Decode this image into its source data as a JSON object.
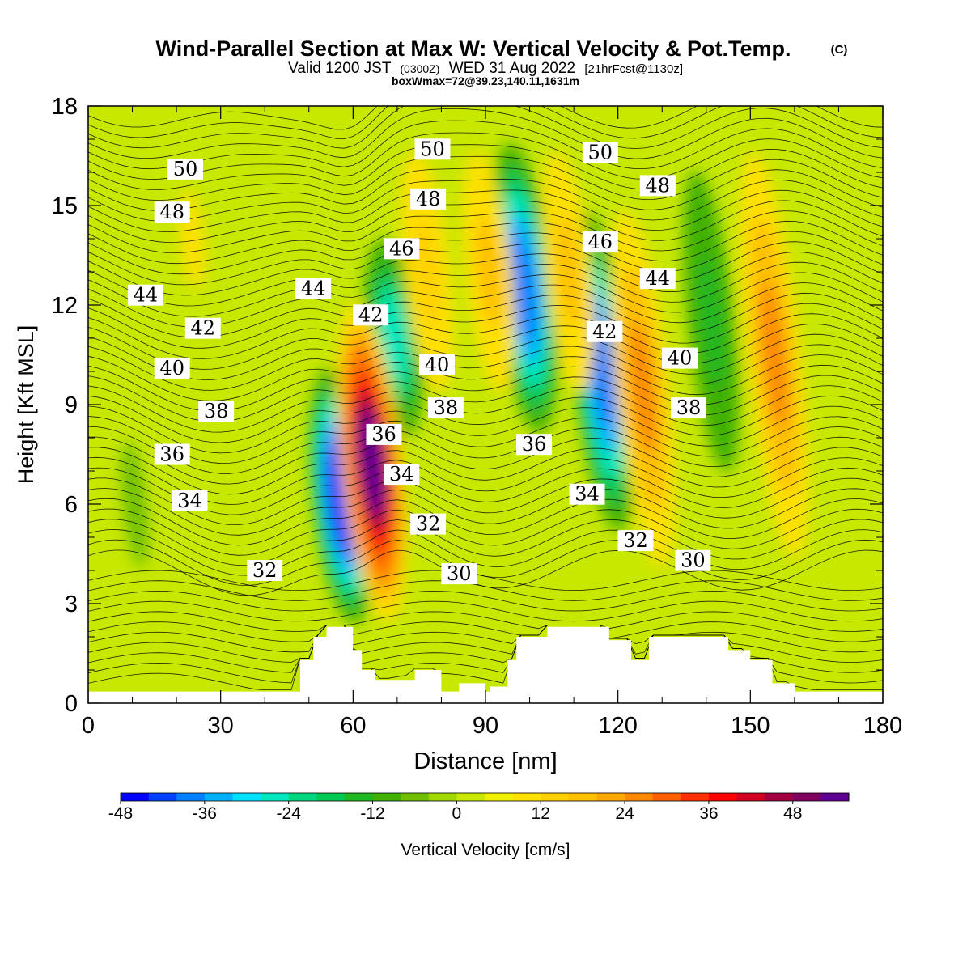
{
  "header": {
    "title": "Wind-Parallel Section at Max W: Vertical Velocity & Pot.Temp.",
    "copyright_mark": "(C)",
    "valid_prefix": "Valid 1200 JST",
    "valid_utc": "(0300Z)",
    "valid_date": "WED 31 Aug 2022",
    "forecast": "[21hrFcst@1130z]",
    "box_max": "boxWmax=72@39.23,140.11,1631m"
  },
  "chart_data": {
    "type": "heatmap",
    "title": "Wind-Parallel Section at Max W: Vertical Velocity & Pot.Temp.",
    "xlabel": "Distance [nm]",
    "ylabel": "Height [Kft MSL]",
    "xlim": [
      0,
      180
    ],
    "ylim": [
      0,
      18
    ],
    "x_ticks": [
      "0",
      "30",
      "60",
      "90",
      "120",
      "150",
      "180"
    ],
    "y_ticks": [
      "0",
      "3",
      "6",
      "9",
      "12",
      "15",
      "18"
    ],
    "fill_variable": "Vertical Velocity [cm/s]",
    "fill_levels": [
      -48,
      -44,
      -40,
      -36,
      -32,
      -28,
      -24,
      -20,
      -16,
      -12,
      -8,
      -4,
      0,
      4,
      8,
      12,
      16,
      20,
      24,
      28,
      32,
      36,
      40,
      44,
      48,
      52
    ],
    "fill_colors": [
      "#0000ff",
      "#0040ff",
      "#0080ff",
      "#00b0ff",
      "#00e0ff",
      "#00e8c0",
      "#00d880",
      "#00c850",
      "#20b820",
      "#40b000",
      "#70c000",
      "#a0d800",
      "#c8e800",
      "#f0f000",
      "#ffe000",
      "#ffd000",
      "#ffc000",
      "#ffa800",
      "#ff8800",
      "#ff6000",
      "#ff3000",
      "#ff0000",
      "#d00020",
      "#a00040",
      "#800060",
      "#600090"
    ],
    "colorbar_ticks": [
      "-48",
      "-36",
      "-24",
      "-12",
      "0",
      "12",
      "24",
      "36",
      "48"
    ],
    "colorbar_label": "Vertical Velocity [cm/s]",
    "updrafts": [
      {
        "x": 64,
        "z_low": 2.5,
        "z_high": 12,
        "w_max": 52
      },
      {
        "x": 126,
        "z_low": 3,
        "z_high": 16,
        "w_max": 26
      },
      {
        "x": 156,
        "z_low": 3,
        "z_high": 18,
        "w_max": 26
      },
      {
        "x": 78,
        "z_low": 8,
        "z_high": 18,
        "w_max": 12
      },
      {
        "x": 92,
        "z_low": 8,
        "z_high": 18,
        "w_max": 18
      },
      {
        "x": 110,
        "z_low": 8,
        "z_high": 18,
        "w_max": 18
      },
      {
        "x": 25,
        "z_low": 10,
        "z_high": 18,
        "w_max": 8
      }
    ],
    "downdrafts": [
      {
        "x": 57,
        "z_low": 2.5,
        "z_high": 10,
        "w_min": -48
      },
      {
        "x": 70,
        "z_low": 8,
        "z_high": 14,
        "w_min": -28
      },
      {
        "x": 100,
        "z_low": 8,
        "z_high": 17,
        "w_min": -40
      },
      {
        "x": 117,
        "z_low": 5,
        "z_high": 15,
        "w_min": -40
      },
      {
        "x": 142,
        "z_low": 5,
        "z_high": 18,
        "w_min": -16
      },
      {
        "x": 10,
        "z_low": 0,
        "z_high": 12,
        "w_min": -8
      }
    ],
    "contour_variable": "Potential Temperature",
    "contour_levels": [
      30,
      32,
      34,
      36,
      38,
      40,
      42,
      44,
      46,
      48,
      50
    ],
    "contour_labels": [
      {
        "text": "50",
        "x": 22,
        "z": 16.1
      },
      {
        "text": "48",
        "x": 19,
        "z": 14.8
      },
      {
        "text": "44",
        "x": 13,
        "z": 12.3
      },
      {
        "text": "42",
        "x": 26,
        "z": 11.3
      },
      {
        "text": "40",
        "x": 19,
        "z": 10.1
      },
      {
        "text": "38",
        "x": 29,
        "z": 8.8
      },
      {
        "text": "36",
        "x": 19,
        "z": 7.5
      },
      {
        "text": "34",
        "x": 23,
        "z": 6.1
      },
      {
        "text": "32",
        "x": 40,
        "z": 4.0
      },
      {
        "text": "44",
        "x": 51,
        "z": 12.5
      },
      {
        "text": "42",
        "x": 64,
        "z": 11.7
      },
      {
        "text": "46",
        "x": 71,
        "z": 13.7
      },
      {
        "text": "48",
        "x": 77,
        "z": 15.2
      },
      {
        "text": "50",
        "x": 78,
        "z": 16.7
      },
      {
        "text": "40",
        "x": 79,
        "z": 10.2
      },
      {
        "text": "38",
        "x": 81,
        "z": 8.9
      },
      {
        "text": "36",
        "x": 67,
        "z": 8.1
      },
      {
        "text": "34",
        "x": 71,
        "z": 6.9
      },
      {
        "text": "32",
        "x": 77,
        "z": 5.4
      },
      {
        "text": "30",
        "x": 84,
        "z": 3.9
      },
      {
        "text": "36",
        "x": 101,
        "z": 7.8
      },
      {
        "text": "34",
        "x": 113,
        "z": 6.3
      },
      {
        "text": "32",
        "x": 124,
        "z": 4.9
      },
      {
        "text": "30",
        "x": 137,
        "z": 4.3
      },
      {
        "text": "50",
        "x": 116,
        "z": 16.6
      },
      {
        "text": "48",
        "x": 129,
        "z": 15.6
      },
      {
        "text": "46",
        "x": 116,
        "z": 13.9
      },
      {
        "text": "44",
        "x": 129,
        "z": 12.8
      },
      {
        "text": "42",
        "x": 117,
        "z": 11.2
      },
      {
        "text": "40",
        "x": 134,
        "z": 10.4
      },
      {
        "text": "38",
        "x": 136,
        "z": 8.9
      }
    ],
    "terrain": [
      [
        0,
        0.35
      ],
      [
        40,
        0.35
      ],
      [
        48,
        0.35
      ],
      [
        48,
        1.3
      ],
      [
        51,
        1.3
      ],
      [
        51,
        2.0
      ],
      [
        54,
        2.0
      ],
      [
        54,
        2.3
      ],
      [
        60,
        2.3
      ],
      [
        60,
        1.6
      ],
      [
        62,
        1.6
      ],
      [
        62,
        1.0
      ],
      [
        65,
        1.0
      ],
      [
        65,
        0.7
      ],
      [
        74,
        0.7
      ],
      [
        74,
        1.0
      ],
      [
        80,
        1.0
      ],
      [
        80,
        0.35
      ],
      [
        84,
        0.35
      ],
      [
        84,
        0.6
      ],
      [
        90,
        0.6
      ],
      [
        90,
        0.35
      ],
      [
        91,
        0.35
      ],
      [
        91,
        0.5
      ],
      [
        95,
        0.5
      ],
      [
        95,
        1.3
      ],
      [
        97,
        1.3
      ],
      [
        97,
        2.0
      ],
      [
        104,
        2.0
      ],
      [
        104,
        2.3
      ],
      [
        118,
        2.3
      ],
      [
        118,
        1.9
      ],
      [
        123,
        1.9
      ],
      [
        123,
        1.3
      ],
      [
        127,
        1.3
      ],
      [
        127,
        2.0
      ],
      [
        145,
        2.0
      ],
      [
        145,
        1.6
      ],
      [
        150,
        1.6
      ],
      [
        150,
        1.3
      ],
      [
        155,
        1.3
      ],
      [
        155,
        0.6
      ],
      [
        160,
        0.6
      ],
      [
        160,
        0.35
      ],
      [
        166,
        0.35
      ],
      [
        180,
        0.35
      ]
    ]
  }
}
